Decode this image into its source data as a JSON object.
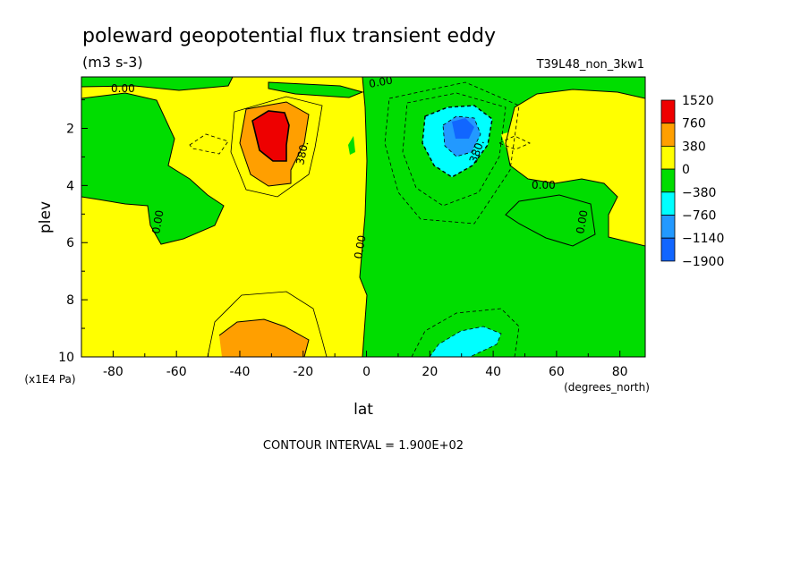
{
  "chart_data": {
    "type": "heatmap",
    "title": "poleward geopotential flux transient eddy",
    "units": "(m3 s-3)",
    "run_label": "T39L48_non_3kw1",
    "xlabel": "lat",
    "xunits": "(degrees_north)",
    "ylabel": "plev",
    "yunits": "(x1E4 Pa)",
    "xlim": [
      -90,
      88
    ],
    "ylim": [
      10,
      0.2
    ],
    "x_ticks": [
      -80,
      -60,
      -40,
      -20,
      0,
      20,
      40,
      60,
      80
    ],
    "y_ticks": [
      2,
      4,
      6,
      8,
      10
    ],
    "contour_interval_text": "CONTOUR INTERVAL = 1.900E+02",
    "legend": {
      "placement": "right",
      "levels": [
        "1520",
        "760",
        "380",
        "0",
        "−380",
        "−760",
        "−1140",
        "−1900"
      ],
      "colors": [
        "#ee0000",
        "#ff9f00",
        "#ffff00",
        "#00dd00",
        "#00ffff",
        "#2299ff",
        "#1166ff"
      ]
    },
    "contour_labels": [
      {
        "text": "0.00",
        "x": -75,
        "y": 0.6
      },
      {
        "text": "0.00",
        "x": 7,
        "y": 0.4
      },
      {
        "text": "0.00",
        "x": -65,
        "y": 5.1
      },
      {
        "text": "0.00",
        "x": -2,
        "y": 6.6
      },
      {
        "text": "0.00",
        "x": 58,
        "y": 4.0
      },
      {
        "text": "0.00",
        "x": 67,
        "y": 5.0
      },
      {
        "text": "380.",
        "x": -19,
        "y": 2.9
      },
      {
        "text": "380.",
        "x": 36,
        "y": 2.9
      }
    ],
    "features": [
      {
        "kind": "max",
        "x": -30,
        "y": 2.0,
        "value_range": "> 1520"
      },
      {
        "kind": "min",
        "x": 30,
        "y": 1.9,
        "value_range": "< -1140"
      },
      {
        "kind": "max",
        "x": -28,
        "y": 9.6,
        "value_range": "380 to 760"
      },
      {
        "kind": "min",
        "x": 30,
        "y": 9.5,
        "value_range": "-380 to -760"
      }
    ]
  }
}
